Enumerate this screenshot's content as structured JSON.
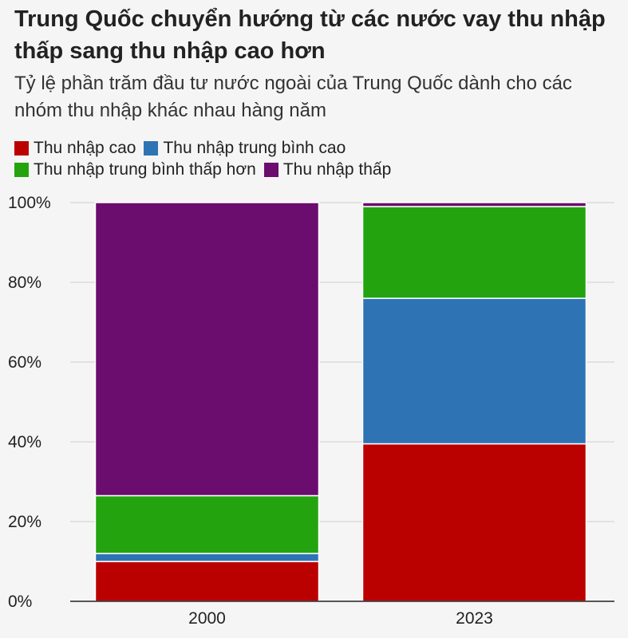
{
  "chart_data": {
    "type": "bar",
    "stacked": true,
    "title": "Trung Quốc chuyển hướng từ các nước vay thu nhập thấp sang thu nhập cao hơn",
    "subtitle": "Tỷ lệ phần trăm đầu tư nước ngoài của Trung Quốc dành cho các nhóm thu nhập khác nhau hàng năm",
    "categories": [
      "2000",
      "2023"
    ],
    "series": [
      {
        "name": "Thu nhập cao",
        "color": "#bb0000",
        "values": [
          10,
          39.5
        ]
      },
      {
        "name": "Thu nhập trung bình cao",
        "color": "#2e74b5",
        "values": [
          2,
          36.5
        ]
      },
      {
        "name": "Thu nhập trung bình thấp hơn",
        "color": "#23a40f",
        "values": [
          14.5,
          23
        ]
      },
      {
        "name": "Thu nhập thấp",
        "color": "#6b0d6e",
        "values": [
          73.5,
          1
        ]
      }
    ],
    "ylim": [
      0,
      100
    ],
    "yticks": [
      {
        "value": 0,
        "label": "0%"
      },
      {
        "value": 20,
        "label": "20%"
      },
      {
        "value": 40,
        "label": "40%"
      },
      {
        "value": 60,
        "label": "60%"
      },
      {
        "value": 80,
        "label": "80%"
      },
      {
        "value": 100,
        "label": "100%"
      }
    ],
    "grid": true,
    "legend_position": "top-left"
  }
}
